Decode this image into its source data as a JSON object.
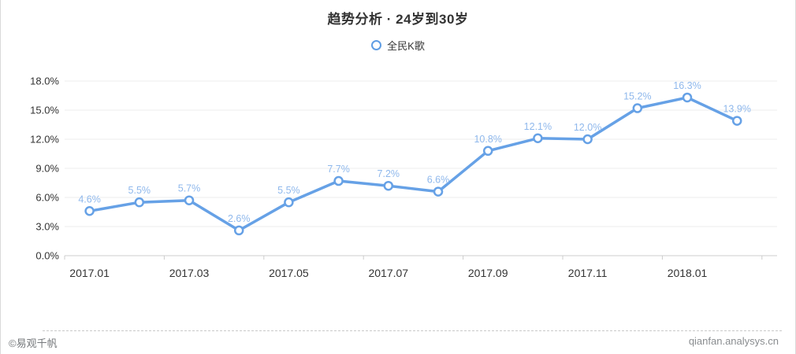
{
  "title": "趋势分析 · 24岁到30岁",
  "legend": {
    "label": "全民K歌"
  },
  "footer": {
    "copyright": "©易观千帆",
    "site": "qianfan.analysys.cn"
  },
  "colors": {
    "line": "#66a1e6",
    "marker_stroke": "#66a1e6",
    "marker_fill": "#ffffff",
    "point_label": "#8fb8ec",
    "grid": "#eeeeee",
    "axis": "#cccccc",
    "axis_text": "#333333"
  },
  "chart_data": {
    "type": "line",
    "series_name": "全民K歌",
    "x": [
      "2017.01",
      "2017.02",
      "2017.03",
      "2017.04",
      "2017.05",
      "2017.06",
      "2017.07",
      "2017.08",
      "2017.09",
      "2017.10",
      "2017.11",
      "2017.12",
      "2018.01",
      "2018.02"
    ],
    "values": [
      4.6,
      5.5,
      5.7,
      2.6,
      5.5,
      7.7,
      7.2,
      6.6,
      10.8,
      12.1,
      12.0,
      15.2,
      16.3,
      13.9
    ],
    "point_labels": [
      "4.6%",
      "5.5%",
      "5.7%",
      "2.6%",
      "5.5%",
      "7.7%",
      "7.2%",
      "6.6%",
      "10.8%",
      "12.1%",
      "12.0%",
      "15.2%",
      "16.3%",
      "13.9%"
    ],
    "x_tick_labels": [
      "2017.01",
      "2017.03",
      "2017.05",
      "2017.07",
      "2017.09",
      "2017.11",
      "2018.01"
    ],
    "y_tick_labels": [
      "0.0%",
      "3.0%",
      "6.0%",
      "9.0%",
      "12.0%",
      "15.0%",
      "18.0%"
    ],
    "ylim": [
      0,
      18
    ],
    "grid_on": true,
    "legend_position": "top-center"
  }
}
